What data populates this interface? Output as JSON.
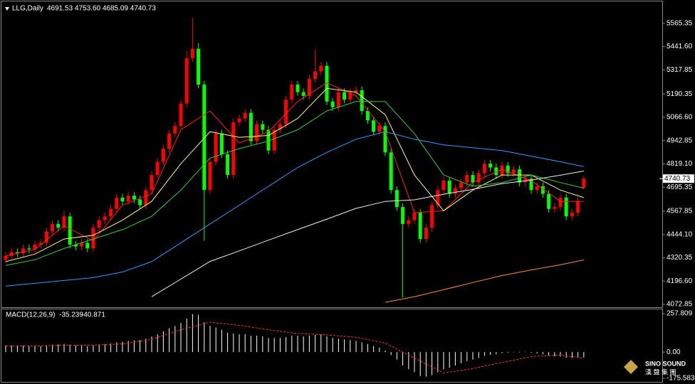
{
  "chart_data": [
    {
      "type": "candlestick",
      "title": "LLG,Daily",
      "info": "4691.53 4753.60 4685.09 4740.73",
      "up_color": "#ff0000",
      "down_color": "#00ff00",
      "open": [
        4310,
        4330,
        4350,
        4345,
        4370,
        4365,
        4390,
        4400,
        4460,
        4500,
        4480,
        4540,
        4390,
        4380,
        4400,
        4370,
        4480,
        4520,
        4540,
        4580,
        4640,
        4620,
        4650,
        4630,
        4600,
        4680,
        4760,
        4830,
        4900,
        4980,
        5020,
        5140,
        5380,
        5430,
        5240,
        4680,
        4830,
        4980,
        4870,
        4760,
        5040,
        5060,
        5090,
        4940,
        5030,
        5000,
        4890,
        5000,
        5030,
        5160,
        5240,
        5200,
        5180,
        5270,
        5310,
        5340,
        5150,
        5120,
        5200,
        5160,
        5200,
        5210,
        5100,
        5050,
        4990,
        5020,
        4880,
        4680,
        4590,
        4500,
        4520,
        4560,
        4420,
        4480,
        4600,
        4680,
        4730,
        4660,
        4690,
        4720,
        4760,
        4720,
        4770,
        4820,
        4800,
        4760,
        4810,
        4770,
        4790,
        4720,
        4740,
        4680,
        4700,
        4660,
        4580,
        4590,
        4640,
        4540,
        4560,
        4691.53
      ],
      "high": [
        4350,
        4370,
        4370,
        4390,
        4390,
        4410,
        4420,
        4480,
        4520,
        4520,
        4570,
        4560,
        4410,
        4420,
        4420,
        4500,
        4540,
        4560,
        4600,
        4660,
        4660,
        4670,
        4670,
        4650,
        4700,
        4780,
        4850,
        4920,
        5000,
        5040,
        5160,
        5420,
        5595,
        5460,
        5260,
        4850,
        5000,
        5000,
        4890,
        5060,
        5080,
        5110,
        5110,
        5050,
        5050,
        5020,
        5020,
        5050,
        5180,
        5260,
        5260,
        5220,
        5290,
        5425,
        5360,
        5360,
        5170,
        5220,
        5220,
        5220,
        5230,
        5230,
        5120,
        5070,
        5040,
        5040,
        4900,
        4700,
        4610,
        4540,
        4580,
        4580,
        4500,
        4620,
        4700,
        4750,
        4750,
        4710,
        4740,
        4780,
        4780,
        4790,
        4840,
        4840,
        4820,
        4830,
        4830,
        4810,
        4810,
        4760,
        4760,
        4720,
        4720,
        4680,
        4610,
        4660,
        4660,
        4580,
        4640,
        4753.6
      ],
      "low": [
        4290,
        4310,
        4325,
        4325,
        4345,
        4345,
        4370,
        4380,
        4440,
        4460,
        4460,
        4370,
        4360,
        4360,
        4350,
        4350,
        4460,
        4500,
        4520,
        4560,
        4600,
        4600,
        4610,
        4580,
        4580,
        4660,
        4740,
        4810,
        4880,
        4960,
        5000,
        5120,
        5360,
        5220,
        4410,
        4660,
        4810,
        4850,
        4740,
        4740,
        5020,
        5040,
        4920,
        4920,
        4980,
        4870,
        4870,
        4980,
        5010,
        5140,
        5180,
        5160,
        5160,
        5250,
        5290,
        5130,
        5100,
        5100,
        5140,
        5140,
        5180,
        5080,
        5030,
        4970,
        4970,
        4860,
        4660,
        4570,
        4110,
        4480,
        4500,
        4400,
        4400,
        4460,
        4580,
        4660,
        4640,
        4640,
        4670,
        4700,
        4700,
        4700,
        4750,
        4780,
        4740,
        4740,
        4750,
        4750,
        4700,
        4700,
        4660,
        4660,
        4640,
        4560,
        4560,
        4570,
        4520,
        4520,
        4540,
        4685.09
      ],
      "close": [
        4330,
        4350,
        4345,
        4370,
        4365,
        4390,
        4400,
        4460,
        4500,
        4480,
        4540,
        4390,
        4380,
        4400,
        4370,
        4480,
        4520,
        4540,
        4580,
        4640,
        4620,
        4650,
        4630,
        4600,
        4680,
        4760,
        4830,
        4900,
        4980,
        5020,
        5140,
        5380,
        5430,
        5240,
        4680,
        4830,
        4980,
        4870,
        4760,
        5040,
        5060,
        5090,
        4940,
        5030,
        5000,
        4890,
        5000,
        5030,
        5160,
        5240,
        5200,
        5180,
        5270,
        5310,
        5340,
        5150,
        5120,
        5200,
        5160,
        5200,
        5210,
        5100,
        5050,
        4990,
        5020,
        4880,
        4680,
        4590,
        4500,
        4520,
        4560,
        4420,
        4480,
        4600,
        4680,
        4730,
        4660,
        4690,
        4720,
        4760,
        4720,
        4770,
        4820,
        4800,
        4760,
        4810,
        4770,
        4790,
        4720,
        4740,
        4680,
        4700,
        4660,
        4580,
        4590,
        4640,
        4540,
        4560,
        4620,
        4740.73
      ],
      "ma_x": [
        0,
        5,
        10,
        15,
        20,
        25,
        30,
        35,
        40,
        45,
        50,
        55,
        60,
        65,
        70,
        75,
        80,
        85,
        90,
        95,
        99
      ],
      "series": [
        {
          "color": "#ff2020",
          "values": [
            4330,
            4365,
            4490,
            4410,
            4600,
            4660,
            5000,
            5100,
            4930,
            4990,
            5150,
            5250,
            5180,
            4990,
            4560,
            4570,
            4720,
            4790,
            4730,
            4620,
            4620
          ]
        },
        {
          "color": "#ffff66",
          "values": [
            4300,
            4340,
            4420,
            4440,
            4520,
            4620,
            4820,
            4990,
            4960,
            4970,
            5060,
            5220,
            5200,
            5080,
            4760,
            4570,
            4680,
            4760,
            4760,
            4680,
            4640
          ]
        },
        {
          "color": "#33cc33",
          "values": [
            4280,
            4310,
            4370,
            4420,
            4470,
            4540,
            4680,
            4850,
            4900,
            4940,
            5000,
            5100,
            5150,
            5150,
            4980,
            4760,
            4700,
            4720,
            4760,
            4720,
            4690
          ]
        },
        {
          "color": "#3399ff",
          "values": [
            4170,
            4185,
            4200,
            4215,
            4245,
            4300,
            4400,
            4500,
            4600,
            4700,
            4800,
            4880,
            4950,
            4990,
            4950,
            4920,
            4905,
            4890,
            4860,
            4830,
            4805
          ]
        },
        {
          "color": "#f0f0f0",
          "values": [
            null,
            null,
            null,
            null,
            null,
            4114,
            4207,
            4301,
            4357,
            4414,
            4470,
            4526,
            4583,
            4620,
            4628,
            4658,
            4684,
            4714,
            4733,
            4759,
            4781
          ]
        },
        {
          "color": "#ff8c3a",
          "values": [
            null,
            null,
            null,
            null,
            null,
            null,
            null,
            null,
            null,
            null,
            null,
            null,
            null,
            4084,
            4114,
            4151,
            4189,
            4226,
            4256,
            4283,
            4309
          ]
        }
      ],
      "ylim": [
        4058,
        5659
      ],
      "yticks": [
        4072.85,
        {
          "value": 4196.6,
          "label": "4196.60"
        },
        4320.35,
        {
          "value": 4444.1,
          "label": "4444.10"
        },
        4567.85,
        4695.35,
        {
          "value": 4819.1,
          "label": "4819.10"
        },
        4942.85,
        {
          "value": 5066.6,
          "label": "5066.60"
        },
        5190.35,
        5317.85,
        {
          "value": 5441.6,
          "label": "5441.60"
        },
        5565.35
      ]
    },
    {
      "type": "macd",
      "title": "MACD(12,26,9)",
      "color": "#ffffff",
      "values": [
        45,
        44,
        42,
        42,
        40,
        40,
        40,
        45,
        50,
        52,
        55,
        50,
        45,
        42,
        40,
        45,
        48,
        52,
        58,
        65,
        70,
        75,
        78,
        80,
        90,
        105,
        120,
        140,
        160,
        175,
        195,
        225,
        255,
        250,
        200,
        175,
        165,
        150,
        130,
        125,
        120,
        120,
        110,
        110,
        105,
        95,
        95,
        95,
        100,
        110,
        110,
        105,
        110,
        115,
        120,
        105,
        95,
        90,
        85,
        80,
        75,
        65,
        55,
        40,
        30,
        10,
        -20,
        -50,
        -90,
        -115,
        -135,
        -160,
        -165,
        -155,
        -135,
        -115,
        -105,
        -90,
        -75,
        -60,
        -50,
        -40,
        -25,
        -18,
        -15,
        -8,
        -5,
        -2,
        -3,
        2,
        -5,
        -10,
        -15,
        -25,
        -28,
        -30,
        -38,
        -40,
        -38,
        -35.239
      ],
      "signal": {
        "color": "#ff3030",
        "x": [
          0,
          5,
          10,
          15,
          20,
          25,
          30,
          35,
          40,
          45,
          50,
          55,
          60,
          65,
          70,
          75,
          80,
          85,
          90,
          95,
          99
        ],
        "values": [
          40,
          42,
          45,
          47,
          55,
          85,
          150,
          200,
          180,
          150,
          125,
          115,
          100,
          60,
          -40,
          -140,
          -110,
          -70,
          -30,
          -20,
          -40.871
        ]
      },
      "ylim": [
        -195,
        282
      ],
      "yticks": [
        257.809,
        {
          "value": 0,
          "label": "0.00"
        },
        -175.583
      ]
    }
  ],
  "logo": {
    "name": "SINO SOUND",
    "chinese": "漢 聲 集 團"
  }
}
